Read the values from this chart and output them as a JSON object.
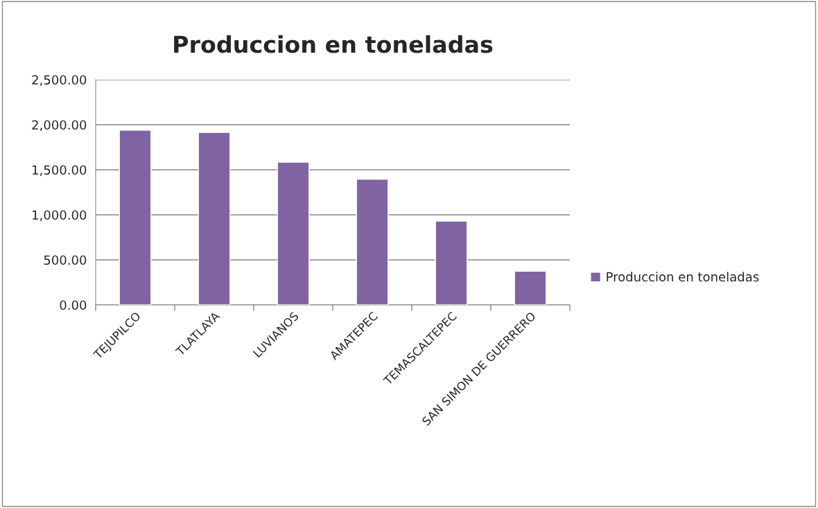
{
  "chart_data": {
    "type": "bar",
    "title": "Produccion en toneladas",
    "categories": [
      "TEJUPILCO",
      "TLATLAYA",
      "LUVIANOS",
      "AMATEPEC",
      "TEMASCALTEPEC",
      "SAN SIMON DE GUERRERO"
    ],
    "series": [
      {
        "name": "Produccion en toneladas",
        "color": "#8064a2",
        "values": [
          1940,
          1915,
          1585,
          1395,
          930,
          375
        ]
      }
    ],
    "ylim": [
      0,
      2500
    ],
    "yticks": [
      {
        "value": 0,
        "label": "0.00"
      },
      {
        "value": 500,
        "label": "500.00"
      },
      {
        "value": 1000,
        "label": "1,000.00"
      },
      {
        "value": 1500,
        "label": "1,500.00"
      },
      {
        "value": 2000,
        "label": "2,000.00"
      },
      {
        "value": 2500,
        "label": "2,500.00"
      }
    ],
    "grid": "y",
    "legend": "right"
  }
}
